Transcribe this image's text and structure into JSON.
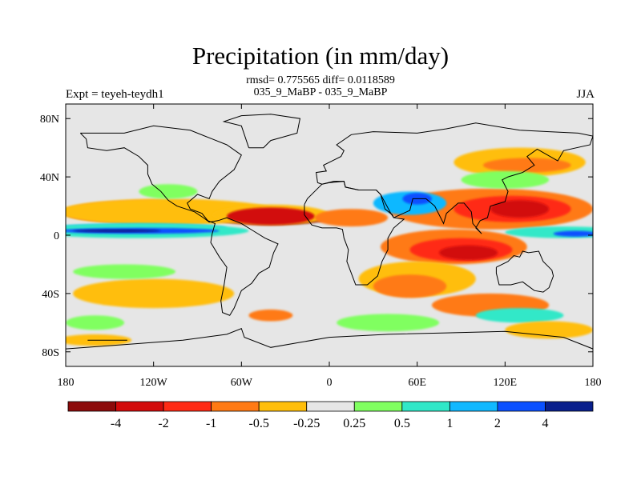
{
  "header": {
    "title": "Precipitation (in mm/day)",
    "stats_line": "rmsd= 0.775565 diff= 0.0118589",
    "subtitle": "035_9_MaBP - 035_9_MaBP",
    "left_label": "Expt = teyeh-teydh1",
    "right_label": "JJA"
  },
  "chart_data": {
    "type": "heatmap",
    "title": "Precipitation (in mm/day)",
    "subtitle": "035_9_MaBP - 035_9_MaBP",
    "annotation": "rmsd= 0.775565 diff= 0.0118589",
    "xlim": [
      -180,
      180
    ],
    "ylim": [
      -90,
      90
    ],
    "x_ticks": [
      {
        "value": -180,
        "label": "180"
      },
      {
        "value": -120,
        "label": "120W"
      },
      {
        "value": -60,
        "label": "60W"
      },
      {
        "value": 0,
        "label": "0"
      },
      {
        "value": 60,
        "label": "60E"
      },
      {
        "value": 120,
        "label": "120E"
      },
      {
        "value": 180,
        "label": "180"
      }
    ],
    "y_ticks": [
      {
        "value": 80,
        "label": "80N"
      },
      {
        "value": 40,
        "label": "40N"
      },
      {
        "value": 0,
        "label": "0"
      },
      {
        "value": -40,
        "label": "40S"
      },
      {
        "value": -80,
        "label": "80S"
      }
    ],
    "colorbar": {
      "levels": [
        "-4",
        "-2",
        "-1",
        "-0.5",
        "-0.25",
        "0.25",
        "0.5",
        "1",
        "2",
        "4"
      ],
      "colors": [
        "#8c0a0a",
        "#d20a0a",
        "#ff2a14",
        "#ff7a14",
        "#ffbe0a",
        "#e6e6e6",
        "#80ff60",
        "#30e8c8",
        "#10b8ff",
        "#0a50ff",
        "#081e8c"
      ]
    },
    "fields": [
      {
        "level": 0,
        "lon": -40,
        "lat": 12,
        "rx": 40,
        "ry": 5
      },
      {
        "level": 1,
        "lon": -135,
        "lat": 15,
        "rx": 45,
        "ry": 6
      },
      {
        "level": 3,
        "lon": -120,
        "lat": 16,
        "rx": 62,
        "ry": 8
      },
      {
        "level": 4,
        "lon": -110,
        "lat": 16,
        "rx": 75,
        "ry": 9
      },
      {
        "level": 4,
        "lon": -40,
        "lat": 14,
        "rx": 40,
        "ry": 7
      },
      {
        "level": 1,
        "lon": -40,
        "lat": 13,
        "rx": 30,
        "ry": 6
      },
      {
        "level": 3,
        "lon": 15,
        "lat": 12,
        "rx": 25,
        "ry": 6
      },
      {
        "level": 3,
        "lon": 110,
        "lat": 18,
        "rx": 70,
        "ry": 14
      },
      {
        "level": 2,
        "lon": 125,
        "lat": 18,
        "rx": 40,
        "ry": 9
      },
      {
        "level": 1,
        "lon": 130,
        "lat": 18,
        "rx": 20,
        "ry": 6
      },
      {
        "level": 8,
        "lon": -130,
        "lat": 5,
        "rx": 60,
        "ry": 3
      },
      {
        "level": 7,
        "lon": -130,
        "lat": 3,
        "rx": 75,
        "ry": 5
      },
      {
        "level": 9,
        "lon": -130,
        "lat": 3,
        "rx": 55,
        "ry": 2
      },
      {
        "level": 10,
        "lon": -145,
        "lat": 3,
        "rx": 30,
        "ry": 1
      },
      {
        "level": 7,
        "lon": 160,
        "lat": 2,
        "rx": 40,
        "ry": 4
      },
      {
        "level": 9,
        "lon": 168,
        "lat": 1,
        "rx": 15,
        "ry": 2
      },
      {
        "level": 8,
        "lon": 55,
        "lat": 22,
        "rx": 25,
        "ry": 8
      },
      {
        "level": 9,
        "lon": 60,
        "lat": 25,
        "rx": 10,
        "ry": 4
      },
      {
        "level": 3,
        "lon": 85,
        "lat": -8,
        "rx": 50,
        "ry": 12
      },
      {
        "level": 2,
        "lon": 90,
        "lat": -10,
        "rx": 35,
        "ry": 8
      },
      {
        "level": 1,
        "lon": 95,
        "lat": -12,
        "rx": 20,
        "ry": 5
      },
      {
        "level": 4,
        "lon": 60,
        "lat": -30,
        "rx": 40,
        "ry": 12
      },
      {
        "level": 3,
        "lon": 55,
        "lat": -35,
        "rx": 25,
        "ry": 8
      },
      {
        "level": 4,
        "lon": 130,
        "lat": 50,
        "rx": 45,
        "ry": 10
      },
      {
        "level": 3,
        "lon": 135,
        "lat": 48,
        "rx": 30,
        "ry": 5
      },
      {
        "level": 6,
        "lon": 120,
        "lat": 38,
        "rx": 30,
        "ry": 6
      },
      {
        "level": 4,
        "lon": -120,
        "lat": -40,
        "rx": 55,
        "ry": 10
      },
      {
        "level": 6,
        "lon": -140,
        "lat": -25,
        "rx": 35,
        "ry": 5
      },
      {
        "level": 3,
        "lon": 110,
        "lat": -48,
        "rx": 40,
        "ry": 8
      },
      {
        "level": 7,
        "lon": 130,
        "lat": -55,
        "rx": 30,
        "ry": 5
      },
      {
        "level": 6,
        "lon": 40,
        "lat": -60,
        "rx": 35,
        "ry": 6
      },
      {
        "level": 4,
        "lon": -160,
        "lat": -72,
        "rx": 25,
        "ry": 4
      },
      {
        "level": 6,
        "lon": -160,
        "lat": -60,
        "rx": 20,
        "ry": 5
      },
      {
        "level": 4,
        "lon": 150,
        "lat": -65,
        "rx": 30,
        "ry": 6
      },
      {
        "level": 3,
        "lon": -40,
        "lat": -55,
        "rx": 15,
        "ry": 4
      },
      {
        "level": 6,
        "lon": -110,
        "lat": 30,
        "rx": 20,
        "ry": 5
      }
    ],
    "coastlines": [
      [
        [
          -170,
          70
        ],
        [
          -140,
          70
        ],
        [
          -120,
          75
        ],
        [
          -95,
          72
        ],
        [
          -80,
          66
        ],
        [
          -70,
          62
        ],
        [
          -60,
          55
        ],
        [
          -65,
          45
        ],
        [
          -75,
          37
        ],
        [
          -80,
          30
        ],
        [
          -82,
          25
        ],
        [
          -90,
          28
        ],
        [
          -97,
          22
        ],
        [
          -95,
          18
        ],
        [
          -87,
          15
        ],
        [
          -83,
          10
        ],
        [
          -78,
          8
        ],
        [
          -80,
          1
        ],
        [
          -81,
          -5
        ],
        [
          -75,
          -15
        ],
        [
          -70,
          -22
        ],
        [
          -72,
          -35
        ],
        [
          -74,
          -45
        ],
        [
          -73,
          -53
        ],
        [
          -68,
          -55
        ],
        [
          -65,
          -50
        ],
        [
          -60,
          -38
        ],
        [
          -53,
          -33
        ],
        [
          -48,
          -26
        ],
        [
          -41,
          -22
        ],
        [
          -38,
          -12
        ],
        [
          -35,
          -6
        ],
        [
          -44,
          -2
        ],
        [
          -52,
          3
        ],
        [
          -60,
          8
        ],
        [
          -70,
          12
        ],
        [
          -76,
          10
        ],
        [
          -82,
          9
        ],
        [
          -86,
          12
        ],
        [
          -92,
          16
        ],
        [
          -104,
          20
        ],
        [
          -110,
          24
        ],
        [
          -115,
          30
        ],
        [
          -121,
          35
        ],
        [
          -124,
          42
        ],
        [
          -124,
          48
        ],
        [
          -130,
          54
        ],
        [
          -140,
          60
        ],
        [
          -152,
          58
        ],
        [
          -165,
          60
        ],
        [
          -166,
          66
        ],
        [
          -170,
          70
        ]
      ],
      [
        [
          -8,
          36
        ],
        [
          -9,
          43
        ],
        [
          -2,
          44
        ],
        [
          -4,
          48
        ],
        [
          2,
          51
        ],
        [
          8,
          54
        ],
        [
          10,
          58
        ],
        [
          5,
          62
        ],
        [
          15,
          69
        ],
        [
          30,
          71
        ],
        [
          60,
          70
        ],
        [
          80,
          73
        ],
        [
          100,
          77
        ],
        [
          130,
          72
        ],
        [
          150,
          71
        ],
        [
          170,
          70
        ],
        [
          180,
          68
        ],
        [
          178,
          62
        ],
        [
          160,
          58
        ],
        [
          156,
          51
        ],
        [
          142,
          59
        ],
        [
          135,
          54
        ],
        [
          140,
          48
        ],
        [
          132,
          43
        ],
        [
          122,
          40
        ],
        [
          118,
          38
        ],
        [
          122,
          30
        ],
        [
          120,
          23
        ],
        [
          110,
          20
        ],
        [
          108,
          12
        ],
        [
          103,
          10
        ],
        [
          100,
          5
        ],
        [
          104,
          1
        ],
        [
          98,
          8
        ],
        [
          97,
          16
        ],
        [
          92,
          22
        ],
        [
          88,
          22
        ],
        [
          80,
          15
        ],
        [
          78,
          8
        ],
        [
          72,
          20
        ],
        [
          66,
          25
        ],
        [
          57,
          25
        ],
        [
          55,
          17
        ],
        [
          44,
          12
        ],
        [
          42,
          15
        ],
        [
          35,
          28
        ],
        [
          32,
          31
        ],
        [
          28,
          31
        ],
        [
          20,
          31
        ],
        [
          11,
          33
        ],
        [
          10,
          37
        ],
        [
          3,
          37
        ],
        [
          -5,
          35
        ],
        [
          -8,
          36
        ]
      ],
      [
        [
          -17,
          21
        ],
        [
          -17,
          14
        ],
        [
          -12,
          7
        ],
        [
          -5,
          5
        ],
        [
          5,
          5
        ],
        [
          9,
          4
        ],
        [
          10,
          -2
        ],
        [
          13,
          -10
        ],
        [
          12,
          -18
        ],
        [
          18,
          -34
        ],
        [
          26,
          -34
        ],
        [
          33,
          -28
        ],
        [
          36,
          -18
        ],
        [
          40,
          -10
        ],
        [
          40,
          -2
        ],
        [
          44,
          5
        ],
        [
          51,
          11
        ],
        [
          44,
          12
        ],
        [
          43,
          14
        ],
        [
          38,
          18
        ],
        [
          35,
          28
        ],
        [
          32,
          31
        ],
        [
          20,
          31
        ],
        [
          11,
          33
        ],
        [
          10,
          37
        ],
        [
          0,
          36
        ],
        [
          -5,
          35
        ],
        [
          -10,
          30
        ],
        [
          -15,
          25
        ],
        [
          -17,
          21
        ]
      ],
      [
        [
          114,
          -22
        ],
        [
          114,
          -26
        ],
        [
          116,
          -34
        ],
        [
          124,
          -34
        ],
        [
          132,
          -32
        ],
        [
          136,
          -35
        ],
        [
          140,
          -38
        ],
        [
          146,
          -39
        ],
        [
          150,
          -36
        ],
        [
          153,
          -28
        ],
        [
          152,
          -24
        ],
        [
          146,
          -18
        ],
        [
          143,
          -11
        ],
        [
          136,
          -12
        ],
        [
          132,
          -11
        ],
        [
          130,
          -15
        ],
        [
          126,
          -14
        ],
        [
          122,
          -18
        ],
        [
          114,
          -22
        ]
      ],
      [
        [
          -55,
          60
        ],
        [
          -45,
          60
        ],
        [
          -40,
          65
        ],
        [
          -22,
          70
        ],
        [
          -20,
          80
        ],
        [
          -40,
          83
        ],
        [
          -60,
          82
        ],
        [
          -72,
          78
        ],
        [
          -60,
          75
        ],
        [
          -55,
          60
        ]
      ],
      [
        [
          -180,
          -78
        ],
        [
          -140,
          -75
        ],
        [
          -100,
          -72
        ],
        [
          -70,
          -68
        ],
        [
          -60,
          -64
        ],
        [
          -58,
          -70
        ],
        [
          -40,
          -77
        ],
        [
          0,
          -70
        ],
        [
          40,
          -68
        ],
        [
          80,
          -67
        ],
        [
          120,
          -66
        ],
        [
          160,
          -70
        ],
        [
          180,
          -78
        ]
      ],
      [
        [
          -165,
          -72
        ],
        [
          -138,
          -72
        ]
      ]
    ]
  }
}
